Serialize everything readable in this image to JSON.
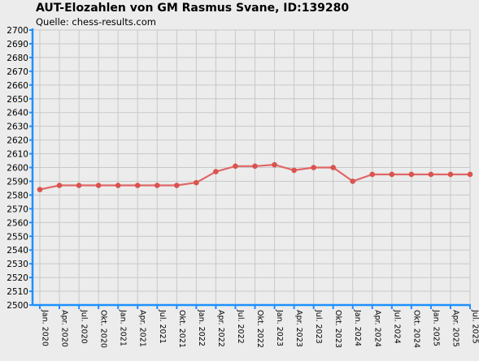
{
  "header": {
    "title": "AUT-Elozahlen von GM Rasmus Svane, ID:139280",
    "subtitle": "Quelle: chess-results.com"
  },
  "colors": {
    "background": "#ececec",
    "grid": "#c8c8c8",
    "axis": "#1e90ff",
    "line": "#e06666",
    "marker": "#d9534f"
  },
  "chart_data": {
    "type": "line",
    "title": "AUT-Elozahlen von GM Rasmus Svane, ID:139280",
    "subtitle": "Quelle: chess-results.com",
    "xlabel": "",
    "ylabel": "",
    "ylim": [
      2500,
      2700
    ],
    "y_ticks": [
      2500,
      2510,
      2520,
      2530,
      2540,
      2550,
      2560,
      2570,
      2580,
      2590,
      2600,
      2610,
      2620,
      2630,
      2640,
      2650,
      2660,
      2670,
      2680,
      2690,
      2700
    ],
    "categories": [
      "Jan. 2020",
      "Apr. 2020",
      "Jul. 2020",
      "Okt. 2020",
      "Jan. 2021",
      "Apr. 2021",
      "Jul. 2021",
      "Okt. 2021",
      "Jan. 2022",
      "Apr. 2022",
      "Jul. 2022",
      "Okt. 2022",
      "Jan. 2023",
      "Apr. 2023",
      "Jul. 2023",
      "Okt. 2023",
      "Jan. 2024",
      "Apr. 2024",
      "Jul. 2024",
      "Okt. 2024",
      "Jan. 2025",
      "Apr. 2025",
      "Jul. 2025"
    ],
    "series": [
      {
        "values": [
          2584,
          2587,
          2587,
          2587,
          2587,
          2587,
          2587,
          2587,
          2589,
          2597,
          2601,
          2601,
          2602,
          2598,
          2600,
          2600,
          2590,
          2595,
          2595,
          2595,
          2595,
          2595,
          2595
        ]
      }
    ],
    "grid": true,
    "legend": "none"
  }
}
